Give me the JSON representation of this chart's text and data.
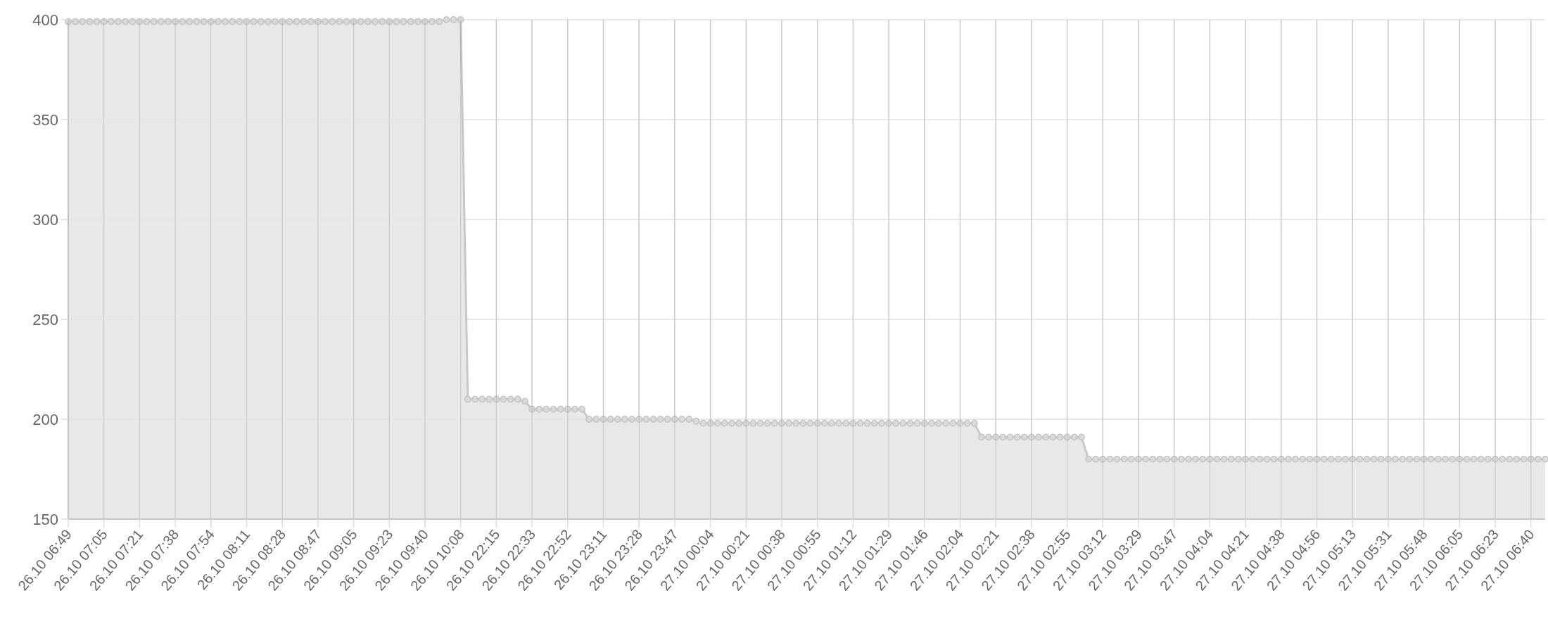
{
  "chart_data": {
    "type": "area",
    "categories": [
      "26.10 06:49",
      null,
      null,
      null,
      null,
      "26.10 07:05",
      null,
      null,
      null,
      null,
      "26.10 07:21",
      null,
      null,
      null,
      null,
      "26.10 07:38",
      null,
      null,
      null,
      null,
      "26.10 07:54",
      null,
      null,
      null,
      null,
      "26.10 08:11",
      null,
      null,
      null,
      null,
      "26.10 08:28",
      null,
      null,
      null,
      null,
      "26.10 08:47",
      null,
      null,
      null,
      null,
      "26.10 09:05",
      null,
      null,
      null,
      null,
      "26.10 09:23",
      null,
      null,
      null,
      null,
      "26.10 09:40",
      null,
      null,
      null,
      null,
      "26.10 10:08",
      null,
      null,
      null,
      null,
      "26.10 22:15",
      null,
      null,
      null,
      null,
      "26.10 22:33",
      null,
      null,
      null,
      null,
      "26.10 22:52",
      null,
      null,
      null,
      null,
      "26.10 23:11",
      null,
      null,
      null,
      null,
      "26.10 23:28",
      null,
      null,
      null,
      null,
      "26.10 23:47",
      null,
      null,
      null,
      null,
      "27.10 00:04",
      null,
      null,
      null,
      null,
      "27.10 00:21",
      null,
      null,
      null,
      null,
      "27.10 00:38",
      null,
      null,
      null,
      null,
      "27.10 00:55",
      null,
      null,
      null,
      null,
      "27.10 01:12",
      null,
      null,
      null,
      null,
      "27.10 01:29",
      null,
      null,
      null,
      null,
      "27.10 01:46",
      null,
      null,
      null,
      null,
      "27.10 02:04",
      null,
      null,
      null,
      null,
      "27.10 02:21",
      null,
      null,
      null,
      null,
      "27.10 02:38",
      null,
      null,
      null,
      null,
      "27.10 02:55",
      null,
      null,
      null,
      null,
      "27.10 03:12",
      null,
      null,
      null,
      null,
      "27.10 03:29",
      null,
      null,
      null,
      null,
      "27.10 03:47",
      null,
      null,
      null,
      null,
      "27.10 04:04",
      null,
      null,
      null,
      null,
      "27.10 04:21",
      null,
      null,
      null,
      null,
      "27.10 04:38",
      null,
      null,
      null,
      null,
      "27.10 04:56",
      null,
      null,
      null,
      null,
      "27.10 05:13",
      null,
      null,
      null,
      null,
      "27.10 05:31",
      null,
      null,
      null,
      null,
      "27.10 05:48",
      null,
      null,
      null,
      null,
      "27.10 06:05",
      null,
      null,
      null,
      null,
      "27.10 06:23",
      null,
      null,
      null,
      null,
      "27.10 06:40",
      null,
      null
    ],
    "series": [
      {
        "color": "#c8c8c8",
        "values": [
          399,
          399,
          399,
          399,
          399,
          399,
          399,
          399,
          399,
          399,
          399,
          399,
          399,
          399,
          399,
          399,
          399,
          399,
          399,
          399,
          399,
          399,
          399,
          399,
          399,
          399,
          399,
          399,
          399,
          399,
          399,
          399,
          399,
          399,
          399,
          399,
          399,
          399,
          399,
          399,
          399,
          399,
          399,
          399,
          399,
          399,
          399,
          399,
          399,
          399,
          399,
          399,
          399,
          400,
          400,
          400,
          210,
          210,
          210,
          210,
          210,
          210,
          210,
          210,
          209,
          205,
          205,
          205,
          205,
          205,
          205,
          205,
          205,
          200,
          200,
          200,
          200,
          200,
          200,
          200,
          200,
          200,
          200,
          200,
          200,
          200,
          200,
          200,
          199,
          198,
          198,
          198,
          198,
          198,
          198,
          198,
          198,
          198,
          198,
          198,
          198,
          198,
          198,
          198,
          198,
          198,
          198,
          198,
          198,
          198,
          198,
          198,
          198,
          198,
          198,
          198,
          198,
          198,
          198,
          198,
          198,
          198,
          198,
          198,
          198,
          198,
          198,
          198,
          191,
          191,
          191,
          191,
          191,
          191,
          191,
          191,
          191,
          191,
          191,
          191,
          191,
          191,
          191,
          180,
          180,
          180,
          180,
          180,
          180,
          180,
          180,
          180,
          180,
          180,
          180,
          180,
          180,
          180,
          180,
          180,
          180,
          180,
          180,
          180,
          180,
          180,
          180,
          180,
          180,
          180,
          180,
          180,
          180,
          180,
          180,
          180,
          180,
          180,
          180,
          180,
          180,
          180,
          180,
          180,
          180,
          180,
          180,
          180,
          180,
          180,
          180,
          180,
          180,
          180,
          180,
          180,
          180,
          180,
          180,
          180,
          180,
          180,
          180,
          180,
          180,
          180,
          180,
          180
        ]
      }
    ],
    "ylim": [
      150,
      400
    ],
    "yticks": [
      150,
      200,
      250,
      300,
      350,
      400
    ],
    "grid": true,
    "marker": "circle"
  }
}
